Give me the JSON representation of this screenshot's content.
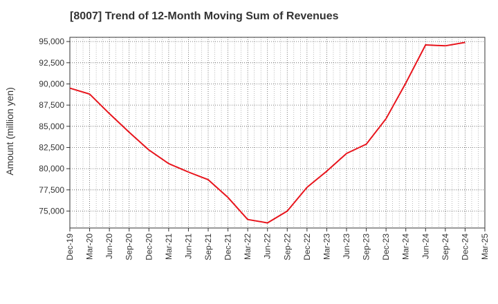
{
  "chart_data": {
    "type": "line",
    "title": "[8007]  Trend of 12-Month Moving Sum of Revenues",
    "ylabel": "Amount (million yen)",
    "xlabel": "",
    "ylim": [
      73000,
      95500
    ],
    "y_ticks": [
      75000,
      77500,
      80000,
      82500,
      85000,
      87500,
      90000,
      92500,
      95000
    ],
    "y_tick_labels": [
      "75,000",
      "77,500",
      "80,000",
      "82,500",
      "85,000",
      "87,500",
      "90,000",
      "92,500",
      "95,000"
    ],
    "categories": [
      "Dec-19",
      "Mar-20",
      "Jun-20",
      "Sep-20",
      "Dec-20",
      "Mar-21",
      "Jun-21",
      "Sep-21",
      "Dec-21",
      "Mar-22",
      "Jun-22",
      "Sep-22",
      "Dec-22",
      "Mar-23",
      "Jun-23",
      "Sep-23",
      "Dec-23",
      "Mar-24",
      "Jun-24",
      "Sep-24",
      "Dec-24",
      "Mar-25"
    ],
    "grid": true,
    "legend": "none",
    "series": [
      {
        "color": "#e8141c",
        "values": [
          89500,
          88800,
          86500,
          84300,
          82200,
          80600,
          79600,
          78700,
          76600,
          74000,
          73600,
          75000,
          77800,
          79700,
          81800,
          82900,
          85900,
          90100,
          94600,
          94500,
          94900,
          null
        ]
      }
    ]
  }
}
